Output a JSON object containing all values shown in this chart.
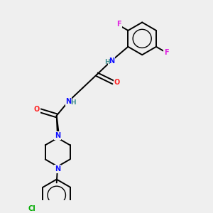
{
  "background_color": "#efefef",
  "figsize": [
    3.0,
    3.0
  ],
  "dpi": 100,
  "atom_colors": {
    "C": "#000000",
    "N": "#1010ff",
    "O": "#ff2020",
    "F": "#e020e0",
    "Cl": "#00aa00",
    "H": "#409090"
  },
  "bond_color": "#000000",
  "bond_width": 1.4,
  "font_size_atom": 7.0,
  "font_size_H": 6.5
}
